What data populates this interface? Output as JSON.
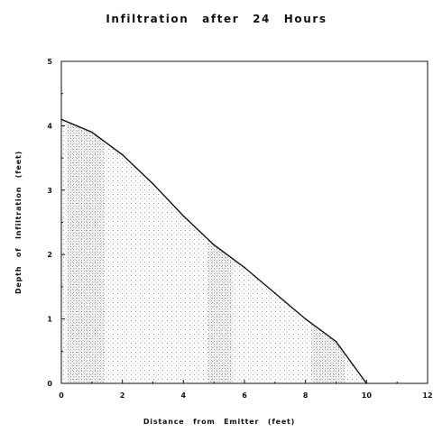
{
  "chart_data": {
    "type": "area",
    "title": "Infiltration after 24 Hours",
    "xlabel": "Distance from Emitter (feet)",
    "ylabel": "Depth of Infiltration (feet)",
    "xlim": [
      0,
      12
    ],
    "ylim": [
      0,
      5
    ],
    "x_ticks": [
      "0",
      "2",
      "4",
      "6",
      "8",
      "10",
      "12"
    ],
    "y_ticks": [
      "0",
      "1",
      "2",
      "3",
      "4",
      "5"
    ],
    "grid": false,
    "fill": "stippled",
    "colors": {
      "line": "#111111",
      "stipple": "#9a9a9a"
    },
    "series": [
      {
        "x": [
          0,
          1,
          2,
          3,
          4,
          5,
          6,
          7,
          8,
          9,
          10
        ],
        "y": [
          4.1,
          3.9,
          3.55,
          3.1,
          2.6,
          2.15,
          1.8,
          1.4,
          1.0,
          0.65,
          0.0
        ]
      }
    ]
  }
}
